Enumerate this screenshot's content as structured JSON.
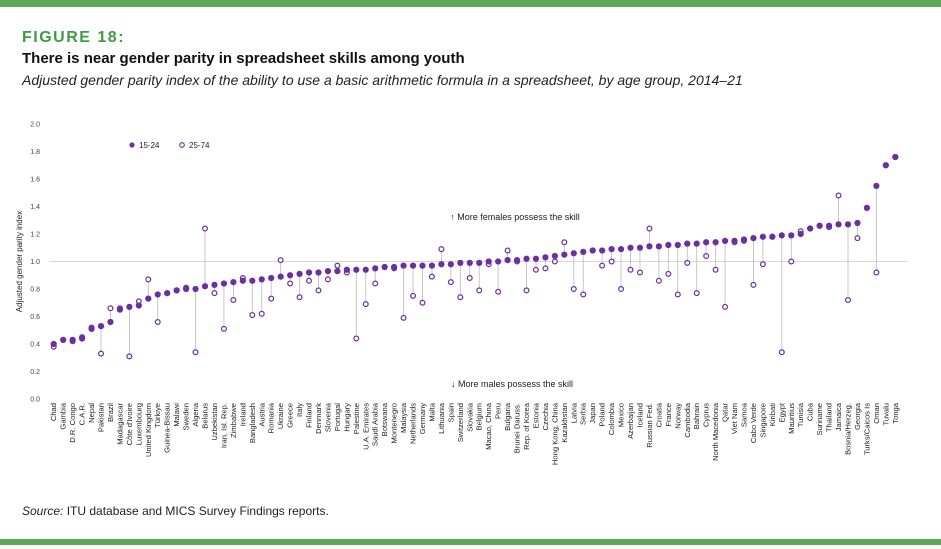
{
  "figure": {
    "label": "FIGURE 18:",
    "title": "There is near gender parity in spreadsheet skills among youth",
    "subtitle": "Adjusted gender parity index of the ability to use a basic arithmetic formula in a spreadsheet, by age group, 2014–21",
    "source_prefix": "Source:",
    "source_text": " ITU database and MICS Survey Findings reports."
  },
  "colors": {
    "accent_green": "#3f9a43",
    "frame_green": "#5aa85a",
    "series_purple": "#6b2fa0",
    "connector": "#bbbbbb",
    "parity_line": "#d8d8d8"
  },
  "chart_data": {
    "type": "scatter",
    "ylabel": "Adjusted gender parity index",
    "ylim": [
      0,
      2.0
    ],
    "yticks": [
      "0.0",
      "0.2",
      "0.4",
      "0.6",
      "0.8",
      "1.0",
      "1.2",
      "1.4",
      "1.6",
      "1.8",
      "2.0"
    ],
    "parity_line": 1.0,
    "legend": [
      {
        "name": "15-24",
        "marker": "filled"
      },
      {
        "name": "25-74",
        "marker": "open"
      }
    ],
    "annotations": {
      "above": "↑ More females possess the skill",
      "below": "↓ More males possess the skill"
    },
    "categories": [
      "Chad",
      "Gambia",
      "D.R. Congo",
      "C.A.R.",
      "Nepal",
      "Pakistan",
      "Brazil",
      "Madagascar",
      "Côte d'Ivoire",
      "Luxembourg",
      "United Kingdom",
      "Türkiye",
      "Guinea-Bissau",
      "Malawi",
      "Sweden",
      "Algeria",
      "Belarus",
      "Uzbekistan",
      "Iran, Isl. Rep.",
      "Zimbabwe",
      "Ireland",
      "Bangladesh",
      "Austria",
      "Romania",
      "Ukraine",
      "Greece",
      "Italy",
      "Finland",
      "Denmark",
      "Slovenia",
      "Portugal",
      "Hungary",
      "Palestine",
      "U.A. Emirates",
      "Saudi Arabia",
      "Botswana",
      "Montenegro",
      "Malaysia",
      "Netherlands",
      "Germany",
      "Malta",
      "Lithuania",
      "Spain",
      "Switzerland",
      "Slovakia",
      "Belgium",
      "Macao, China",
      "Peru",
      "Bulgaria",
      "Brunei Daruss.",
      "Rep. of Korea",
      "Estonia",
      "Czechia",
      "Hong Kong, China",
      "Kazakhstan",
      "Latvia",
      "Serbia",
      "Japan",
      "Poland",
      "Colombia",
      "Mexico",
      "Azerbaijan",
      "Iceland",
      "Russian Fed.",
      "Croatia",
      "France",
      "Norway",
      "Cambodia",
      "Bahrain",
      "Cyprus",
      "North Macedonia",
      "Qatar",
      "Viet Nam",
      "Samoa",
      "Cabo Verde",
      "Singapore",
      "Kiribati",
      "Egypt",
      "Mauritius",
      "Tunisia",
      "Cuba",
      "Suriname",
      "Thailand",
      "Jamaica",
      "Bosnia/Herzeg.",
      "Georgia",
      "Turks/Caicos Is",
      "Oman",
      "Tuvalu",
      "Tonga"
    ],
    "series": [
      {
        "name": "15-24",
        "values": [
          0.4,
          0.43,
          0.43,
          0.44,
          0.51,
          0.53,
          0.56,
          0.65,
          0.67,
          0.68,
          0.73,
          0.76,
          0.77,
          0.79,
          0.8,
          0.8,
          0.82,
          0.83,
          0.84,
          0.85,
          0.86,
          0.86,
          0.87,
          0.88,
          0.89,
          0.9,
          0.91,
          0.92,
          0.92,
          0.93,
          0.93,
          0.94,
          0.94,
          0.94,
          0.95,
          0.96,
          0.96,
          0.97,
          0.97,
          0.97,
          0.97,
          0.98,
          0.98,
          0.99,
          0.99,
          0.99,
          1.0,
          1.0,
          1.01,
          1.01,
          1.02,
          1.02,
          1.03,
          1.04,
          1.05,
          1.06,
          1.07,
          1.08,
          1.08,
          1.09,
          1.09,
          1.1,
          1.1,
          1.11,
          1.11,
          1.12,
          1.12,
          1.13,
          1.13,
          1.14,
          1.14,
          1.15,
          1.15,
          1.16,
          1.17,
          1.18,
          1.18,
          1.19,
          1.19,
          1.2,
          1.24,
          1.26,
          1.26,
          1.27,
          1.27,
          1.28,
          1.39,
          1.55,
          1.7,
          1.76
        ]
      },
      {
        "name": "25-74",
        "values": [
          0.38,
          0.43,
          0.42,
          0.45,
          0.52,
          0.33,
          0.66,
          0.66,
          0.31,
          0.71,
          0.87,
          0.56,
          0.77,
          0.79,
          0.81,
          0.34,
          1.24,
          0.77,
          0.51,
          0.72,
          0.88,
          0.61,
          0.62,
          0.73,
          1.01,
          0.84,
          0.74,
          0.86,
          0.79,
          0.87,
          0.97,
          0.92,
          0.44,
          0.69,
          0.84,
          0.96,
          0.95,
          0.59,
          0.75,
          0.7,
          0.89,
          1.09,
          0.85,
          0.74,
          0.88,
          0.79,
          0.98,
          0.78,
          1.08,
          1.0,
          0.79,
          0.94,
          0.95,
          1.0,
          1.14,
          0.8,
          0.76,
          1.08,
          0.97,
          1.0,
          0.8,
          0.94,
          0.92,
          1.24,
          0.86,
          0.91,
          0.76,
          0.99,
          0.77,
          1.04,
          0.94,
          0.67,
          1.14,
          1.15,
          0.83,
          0.98,
          1.18,
          0.34,
          1.0,
          1.22,
          1.24,
          1.26,
          1.25,
          1.48,
          0.72,
          1.17,
          1.39,
          0.92,
          1.7,
          1.76
        ]
      }
    ]
  }
}
